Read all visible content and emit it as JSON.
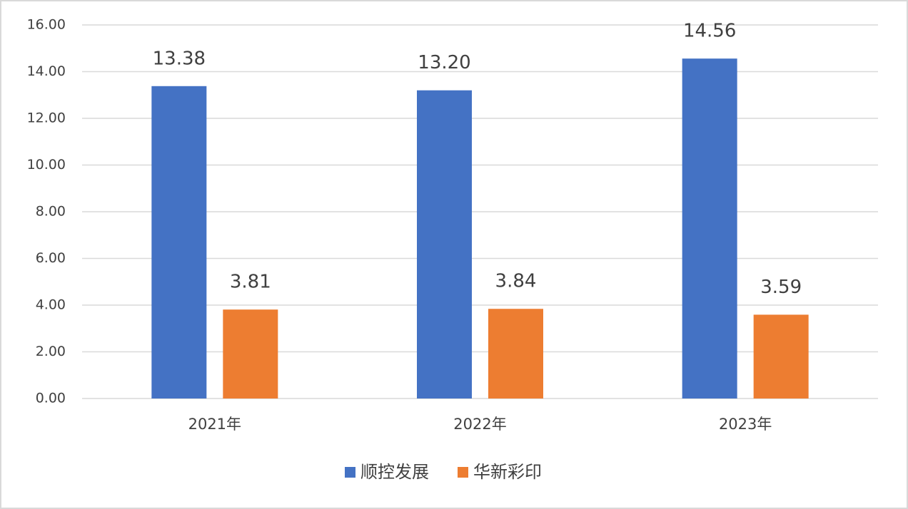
{
  "chart_data": {
    "type": "bar",
    "categories": [
      "2021年",
      "2022年",
      "2023年"
    ],
    "series": [
      {
        "name": "顺控发展",
        "color": "#4472c4",
        "values": [
          13.38,
          13.2,
          14.56
        ],
        "value_labels": [
          "13.38",
          "13.20",
          "14.56"
        ]
      },
      {
        "name": "华新彩印",
        "color": "#ed7d31",
        "values": [
          3.81,
          3.84,
          3.59
        ],
        "value_labels": [
          "3.81",
          "3.84",
          "3.59"
        ]
      }
    ],
    "ylim": [
      0,
      16
    ],
    "yticks": [
      {
        "value": 0,
        "label": "0.00"
      },
      {
        "value": 2,
        "label": "2.00"
      },
      {
        "value": 4,
        "label": "4.00"
      },
      {
        "value": 6,
        "label": "6.00"
      },
      {
        "value": 8,
        "label": "8.00"
      },
      {
        "value": 10,
        "label": "10.00"
      },
      {
        "value": 12,
        "label": "12.00"
      },
      {
        "value": 14,
        "label": "14.00"
      },
      {
        "value": 16,
        "label": "16.00"
      }
    ],
    "grid": true,
    "legend": "bottom"
  }
}
